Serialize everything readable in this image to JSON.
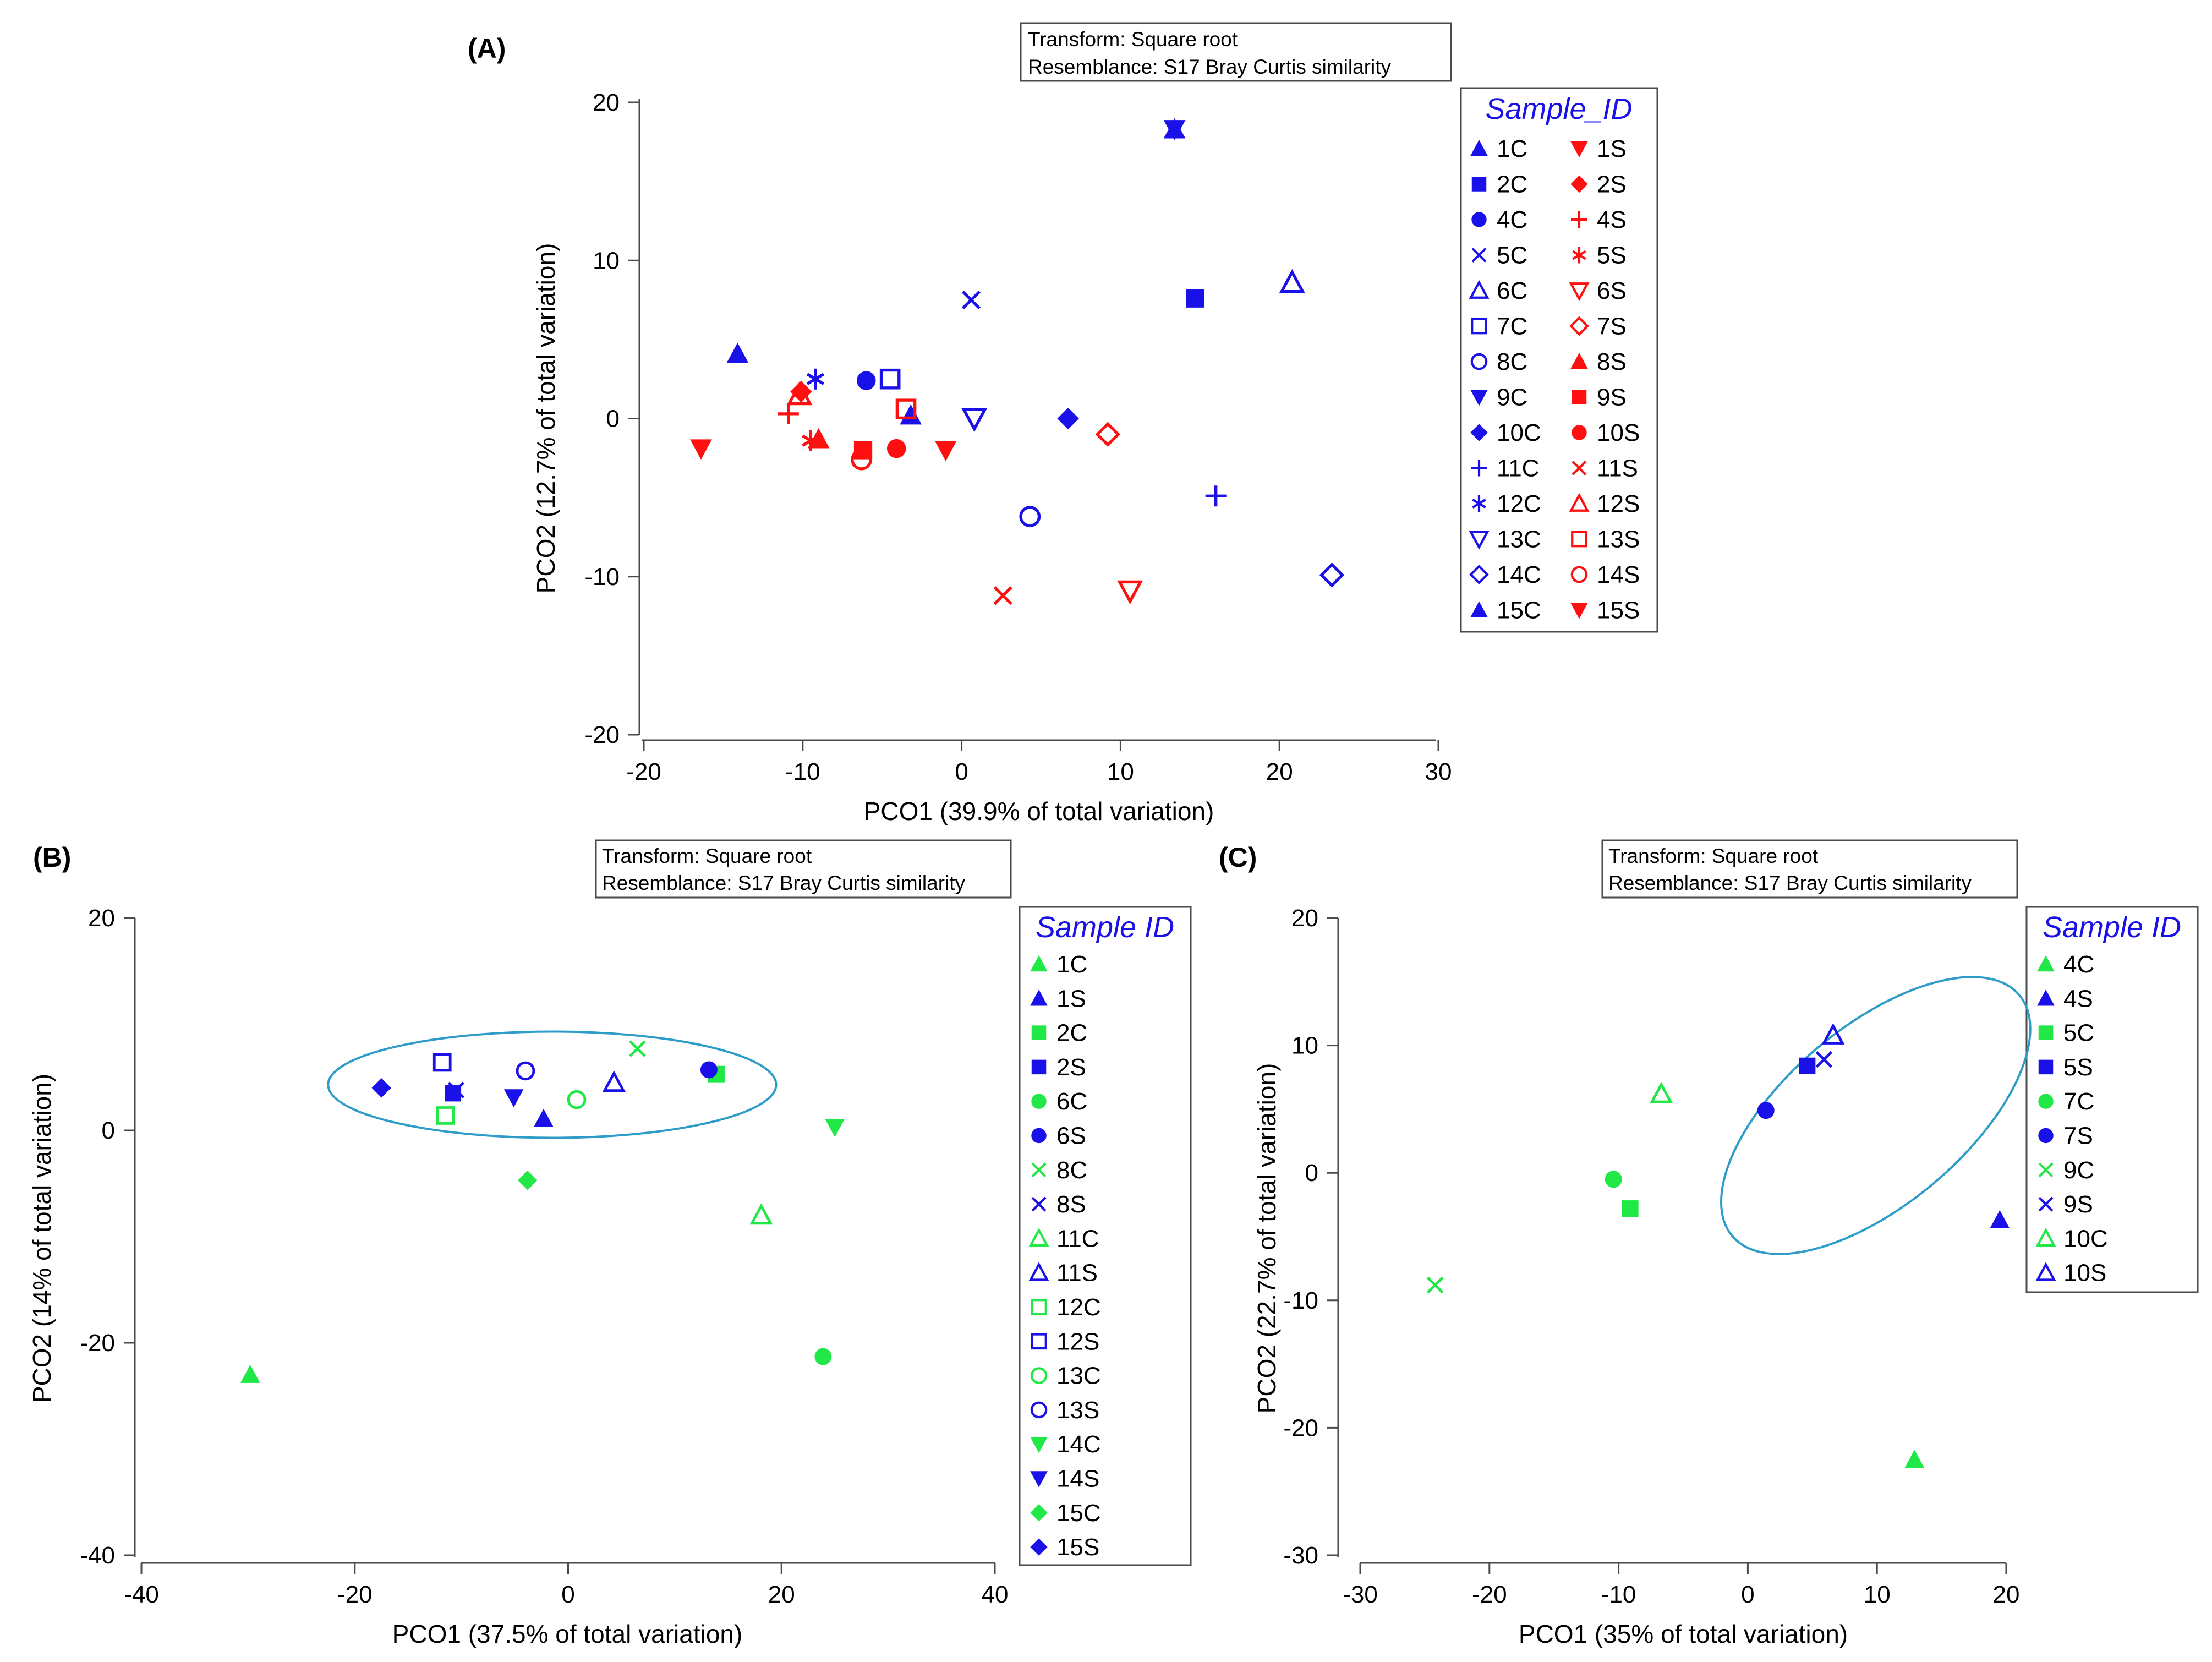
{
  "figure_colors": {
    "blue": "#1a10e8",
    "red": "#ff1010",
    "green": "#21e846",
    "ellipse": "#2e9cc8",
    "frame": "#4a4a4a"
  },
  "chart_data": [
    {
      "panel_label": "(A)",
      "type": "scatter",
      "xlabel": "PCO1 (39.9% of total variation)",
      "ylabel": "PCO2 (12.7% of total variation)",
      "xlim": [
        -20,
        30
      ],
      "ylim": [
        -20,
        20
      ],
      "xticks": [
        "-20",
        "-10",
        "0",
        "10",
        "20",
        "30"
      ],
      "yticks": [
        "20",
        "10",
        "0",
        "-10",
        "-20"
      ],
      "note_lines": [
        "Transform: Square root",
        "Resemblance: S17 Bray Curtis similarity"
      ],
      "legend_title": "Sample_ID",
      "legend_columns": 2,
      "points": [
        {
          "label": "1C",
          "marker": "tri-up",
          "color": "blue",
          "x": 13.4,
          "y": 18.3
        },
        {
          "label": "2C",
          "marker": "square",
          "color": "blue",
          "x": 14.7,
          "y": 7.6
        },
        {
          "label": "4C",
          "marker": "circle",
          "color": "blue",
          "x": -6.0,
          "y": 2.4
        },
        {
          "label": "5C",
          "marker": "x",
          "color": "blue",
          "x": 0.6,
          "y": 7.5
        },
        {
          "label": "6C",
          "marker": "tri-up-open",
          "color": "blue",
          "x": 20.8,
          "y": 8.6
        },
        {
          "label": "7C",
          "marker": "square-open",
          "color": "blue",
          "x": -4.5,
          "y": 2.5
        },
        {
          "label": "8C",
          "marker": "circle-open",
          "color": "blue",
          "x": 4.3,
          "y": -6.2
        },
        {
          "label": "9C",
          "marker": "tri-down",
          "color": "blue",
          "x": 13.4,
          "y": 18.3
        },
        {
          "label": "10C",
          "marker": "diamond",
          "color": "blue",
          "x": 6.7,
          "y": 0.0
        },
        {
          "label": "11C",
          "marker": "plus",
          "color": "blue",
          "x": 16.0,
          "y": -4.9
        },
        {
          "label": "12C",
          "marker": "asterisk",
          "color": "blue",
          "x": -9.2,
          "y": 2.5
        },
        {
          "label": "13C",
          "marker": "tri-down-open",
          "color": "blue",
          "x": 0.8,
          "y": 0.0
        },
        {
          "label": "14C",
          "marker": "diamond-open",
          "color": "blue",
          "x": 23.3,
          "y": -9.9
        },
        {
          "label": "15C",
          "marker": "tri-up",
          "color": "blue",
          "x": -3.2,
          "y": 0.2
        },
        {
          "label": "15C",
          "marker": "tri-up",
          "color": "blue",
          "x": -14.1,
          "y": 4.1
        },
        {
          "label": "1S",
          "marker": "tri-down",
          "color": "red",
          "x": -16.4,
          "y": -1.9
        },
        {
          "label": "2S",
          "marker": "diamond",
          "color": "red",
          "x": -10.1,
          "y": 1.7
        },
        {
          "label": "4S",
          "marker": "plus",
          "color": "red",
          "x": -10.9,
          "y": 0.3
        },
        {
          "label": "5S",
          "marker": "asterisk",
          "color": "red",
          "x": -9.5,
          "y": -1.4
        },
        {
          "label": "6S",
          "marker": "tri-down-open",
          "color": "red",
          "x": 10.6,
          "y": -10.9
        },
        {
          "label": "7S",
          "marker": "diamond-open",
          "color": "red",
          "x": 9.2,
          "y": -1.0
        },
        {
          "label": "8S",
          "marker": "tri-up",
          "color": "red",
          "x": -9.0,
          "y": -1.3
        },
        {
          "label": "9S",
          "marker": "square",
          "color": "red",
          "x": -6.2,
          "y": -2.0
        },
        {
          "label": "10S",
          "marker": "circle",
          "color": "red",
          "x": -4.1,
          "y": -1.9
        },
        {
          "label": "11S",
          "marker": "x",
          "color": "red",
          "x": 2.6,
          "y": -11.2
        },
        {
          "label": "12S",
          "marker": "tri-up-open",
          "color": "red",
          "x": -10.2,
          "y": 1.5
        },
        {
          "label": "13S",
          "marker": "square-open",
          "color": "red",
          "x": -3.5,
          "y": 0.6
        },
        {
          "label": "14S",
          "marker": "circle-open",
          "color": "red",
          "x": -6.3,
          "y": -2.6
        },
        {
          "label": "15S",
          "marker": "tri-down",
          "color": "red",
          "x": -1.0,
          "y": -2.0
        }
      ],
      "legend": [
        {
          "label": "1C",
          "marker": "tri-up",
          "color": "blue"
        },
        {
          "label": "2C",
          "marker": "square",
          "color": "blue"
        },
        {
          "label": "4C",
          "marker": "circle",
          "color": "blue"
        },
        {
          "label": "5C",
          "marker": "x",
          "color": "blue"
        },
        {
          "label": "6C",
          "marker": "tri-up-open",
          "color": "blue"
        },
        {
          "label": "7C",
          "marker": "square-open",
          "color": "blue"
        },
        {
          "label": "8C",
          "marker": "circle-open",
          "color": "blue"
        },
        {
          "label": "9C",
          "marker": "tri-down",
          "color": "blue"
        },
        {
          "label": "10C",
          "marker": "diamond",
          "color": "blue"
        },
        {
          "label": "11C",
          "marker": "plus",
          "color": "blue"
        },
        {
          "label": "12C",
          "marker": "asterisk",
          "color": "blue"
        },
        {
          "label": "13C",
          "marker": "tri-down-open",
          "color": "blue"
        },
        {
          "label": "14C",
          "marker": "diamond-open",
          "color": "blue"
        },
        {
          "label": "15C",
          "marker": "tri-up",
          "color": "blue"
        },
        {
          "label": "1S",
          "marker": "tri-down",
          "color": "red"
        },
        {
          "label": "2S",
          "marker": "diamond",
          "color": "red"
        },
        {
          "label": "4S",
          "marker": "plus",
          "color": "red"
        },
        {
          "label": "5S",
          "marker": "asterisk",
          "color": "red"
        },
        {
          "label": "6S",
          "marker": "tri-down-open",
          "color": "red"
        },
        {
          "label": "7S",
          "marker": "diamond-open",
          "color": "red"
        },
        {
          "label": "8S",
          "marker": "tri-up",
          "color": "red"
        },
        {
          "label": "9S",
          "marker": "square",
          "color": "red"
        },
        {
          "label": "10S",
          "marker": "circle",
          "color": "red"
        },
        {
          "label": "11S",
          "marker": "x",
          "color": "red"
        },
        {
          "label": "12S",
          "marker": "tri-up-open",
          "color": "red"
        },
        {
          "label": "13S",
          "marker": "square-open",
          "color": "red"
        },
        {
          "label": "14S",
          "marker": "circle-open",
          "color": "red"
        },
        {
          "label": "15S",
          "marker": "tri-down",
          "color": "red"
        }
      ]
    },
    {
      "panel_label": "(B)",
      "type": "scatter",
      "xlabel": "PCO1 (37.5% of total variation)",
      "ylabel": "PCO2 (14% of total variation)",
      "xlim": [
        -40,
        40
      ],
      "ylim": [
        -40,
        20
      ],
      "xticks": [
        "-40",
        "-20",
        "0",
        "20",
        "40"
      ],
      "yticks": [
        "20",
        "0",
        "-20",
        "-40"
      ],
      "note_lines": [
        "Transform: Square root",
        "Resemblance: S17 Bray Curtis similarity"
      ],
      "legend_title": "Sample ID",
      "legend_columns": 1,
      "ellipse": {
        "cx": -1.5,
        "cy": 4.3,
        "rx": 21.0,
        "ry": 5.0
      },
      "points": [
        {
          "label": "1C",
          "marker": "tri-up",
          "color": "green",
          "x": -29.8,
          "y": -23.0
        },
        {
          "label": "1S",
          "marker": "tri-up",
          "color": "blue",
          "x": -2.3,
          "y": 1.1
        },
        {
          "label": "2C",
          "marker": "square",
          "color": "green",
          "x": 13.9,
          "y": 5.3
        },
        {
          "label": "2S",
          "marker": "square",
          "color": "blue",
          "x": -10.8,
          "y": 3.5
        },
        {
          "label": "6C",
          "marker": "circle",
          "color": "green",
          "x": 23.9,
          "y": -21.3
        },
        {
          "label": "6S",
          "marker": "circle",
          "color": "blue",
          "x": 13.2,
          "y": 5.7
        },
        {
          "label": "8C",
          "marker": "x",
          "color": "green",
          "x": 6.5,
          "y": 7.7
        },
        {
          "label": "8S",
          "marker": "x",
          "color": "blue",
          "x": -10.5,
          "y": 3.8
        },
        {
          "label": "11C",
          "marker": "tri-up-open",
          "color": "green",
          "x": 18.1,
          "y": -8.0
        },
        {
          "label": "11S",
          "marker": "tri-up-open",
          "color": "blue",
          "x": 4.3,
          "y": 4.5
        },
        {
          "label": "12C",
          "marker": "square-open",
          "color": "green",
          "x": -11.5,
          "y": 1.4
        },
        {
          "label": "12S",
          "marker": "square-open",
          "color": "blue",
          "x": -11.8,
          "y": 6.4
        },
        {
          "label": "13C",
          "marker": "circle-open",
          "color": "green",
          "x": 0.8,
          "y": 2.9
        },
        {
          "label": "13S",
          "marker": "circle-open",
          "color": "blue",
          "x": -4.0,
          "y": 5.6
        },
        {
          "label": "14C",
          "marker": "tri-down",
          "color": "green",
          "x": 25.0,
          "y": 0.3
        },
        {
          "label": "14S",
          "marker": "tri-down",
          "color": "blue",
          "x": -5.1,
          "y": 3.1
        },
        {
          "label": "15C",
          "marker": "diamond",
          "color": "green",
          "x": -3.8,
          "y": -4.7
        },
        {
          "label": "15S",
          "marker": "diamond",
          "color": "blue",
          "x": -17.5,
          "y": 4.0
        }
      ]
    },
    {
      "panel_label": "(C)",
      "type": "scatter",
      "xlabel": "PCO1 (35% of total variation)",
      "ylabel": "PCO2 (22.7% of total variation)",
      "xlim": [
        -30,
        20
      ],
      "ylim": [
        -30,
        20
      ],
      "xticks": [
        "-30",
        "-20",
        "-10",
        "0",
        "10",
        "20"
      ],
      "yticks": [
        "20",
        "10",
        "0",
        "-10",
        "-20",
        "-30"
      ],
      "note_lines": [
        "Transform: Square root",
        "Resemblance: S17 Bray Curtis similarity"
      ],
      "legend_title": "Sample ID",
      "legend_columns": 1,
      "ellipse": {
        "cx": 9.9,
        "cy": 4.5,
        "rx": 14.5,
        "ry": 7.0,
        "angle": 40
      },
      "points": [
        {
          "label": "4C",
          "marker": "tri-up",
          "color": "green",
          "x": 12.9,
          "y": -22.5
        },
        {
          "label": "4S",
          "marker": "tri-up",
          "color": "blue",
          "x": 19.5,
          "y": -3.7
        },
        {
          "label": "5C",
          "marker": "square",
          "color": "green",
          "x": -9.1,
          "y": -2.8
        },
        {
          "label": "5S",
          "marker": "square",
          "color": "blue",
          "x": 4.6,
          "y": 8.4
        },
        {
          "label": "7C",
          "marker": "circle",
          "color": "green",
          "x": -10.4,
          "y": -0.5
        },
        {
          "label": "7S",
          "marker": "circle",
          "color": "blue",
          "x": 1.4,
          "y": 4.9
        },
        {
          "label": "9C",
          "marker": "x",
          "color": "green",
          "x": -24.2,
          "y": -8.8
        },
        {
          "label": "9S",
          "marker": "x",
          "color": "blue",
          "x": 5.9,
          "y": 8.9
        },
        {
          "label": "10C",
          "marker": "tri-up-open",
          "color": "green",
          "x": -6.7,
          "y": 6.2
        },
        {
          "label": "10S",
          "marker": "tri-up-open",
          "color": "blue",
          "x": 6.6,
          "y": 10.8
        }
      ]
    }
  ]
}
